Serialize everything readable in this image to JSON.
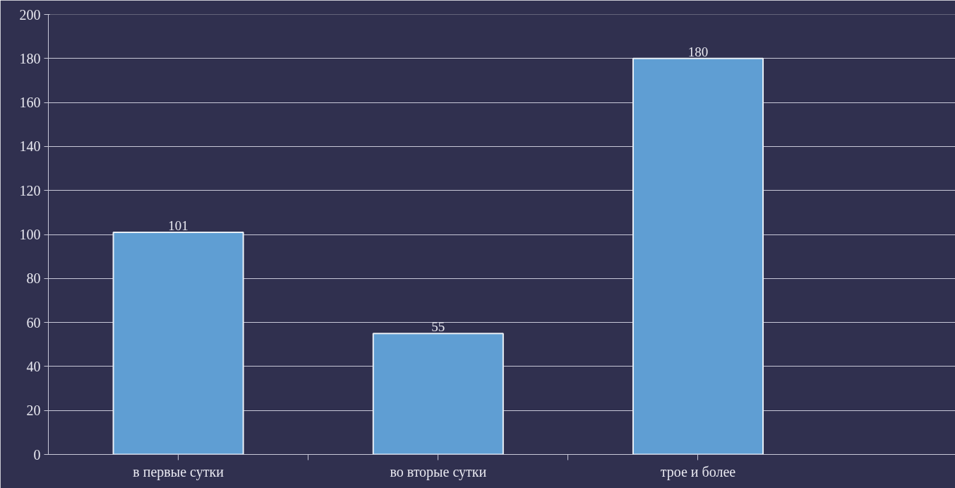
{
  "chart_data": {
    "type": "bar",
    "categories": [
      "в первые сутки",
      "во вторые сутки",
      "трое и более"
    ],
    "values": [
      101,
      55,
      180
    ],
    "color": "#5f9ed3",
    "data_labels": true,
    "grid": "y",
    "ylim": [
      0,
      200
    ],
    "yticks": [
      0,
      20,
      40,
      60,
      80,
      100,
      120,
      140,
      160,
      180,
      200
    ]
  }
}
